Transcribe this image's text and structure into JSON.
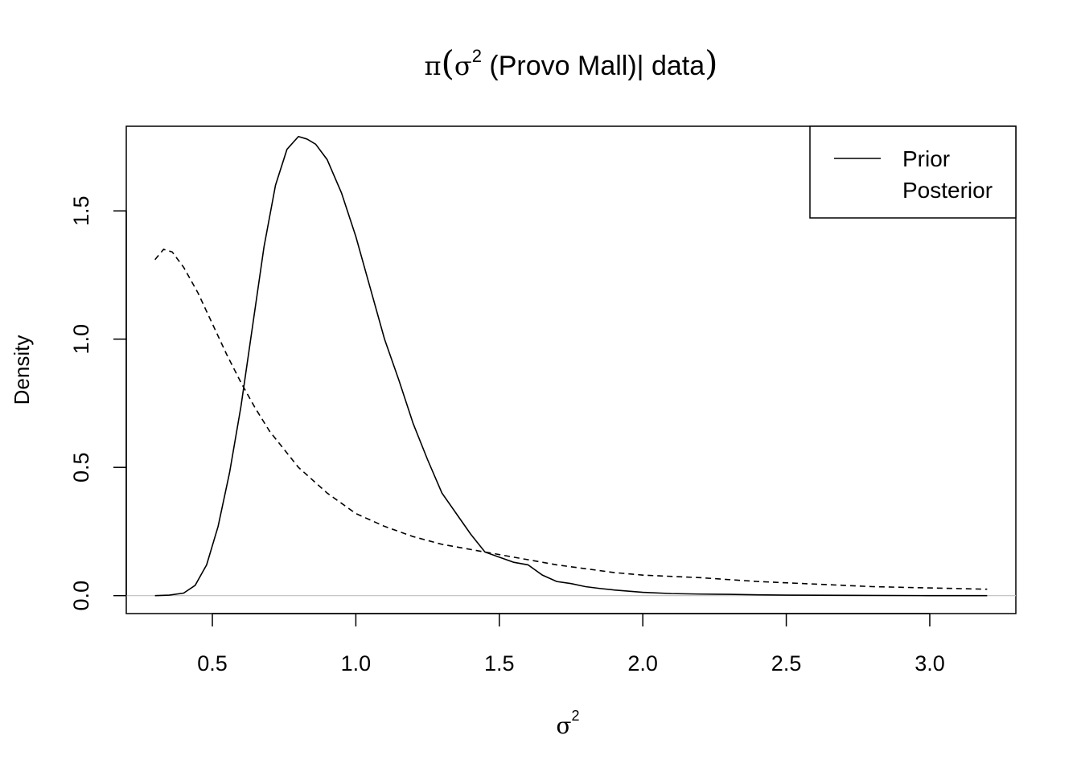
{
  "chart_data": {
    "type": "line",
    "title": {
      "pi": "π",
      "sigma": "σ",
      "sup": "2",
      "text": " (Provo Mall)| data"
    },
    "xlabel": {
      "sigma": "σ",
      "sup": "2"
    },
    "ylabel": "Density",
    "xlim": [
      0.2,
      3.3
    ],
    "ylim": [
      -0.07,
      1.83
    ],
    "x_ticks": [
      {
        "value": 0.5,
        "label": "0.5"
      },
      {
        "value": 1.0,
        "label": "1.0"
      },
      {
        "value": 1.5,
        "label": "1.5"
      },
      {
        "value": 2.0,
        "label": "2.0"
      },
      {
        "value": 2.5,
        "label": "2.5"
      },
      {
        "value": 3.0,
        "label": "3.0"
      }
    ],
    "y_ticks": [
      {
        "value": 0.0,
        "label": "0.0"
      },
      {
        "value": 0.5,
        "label": "0.5"
      },
      {
        "value": 1.0,
        "label": "1.0"
      },
      {
        "value": 1.5,
        "label": "1.5"
      }
    ],
    "baseline": 0,
    "grid": false,
    "legend": {
      "position": "top-right",
      "entries": [
        {
          "label": "Prior",
          "line_style": "solid"
        },
        {
          "label": "Posterior",
          "line_style": "none"
        }
      ]
    },
    "series": [
      {
        "style": "solid",
        "x": [
          0.3,
          0.35,
          0.4,
          0.44,
          0.48,
          0.52,
          0.56,
          0.6,
          0.64,
          0.68,
          0.72,
          0.76,
          0.8,
          0.83,
          0.86,
          0.9,
          0.95,
          1.0,
          1.05,
          1.1,
          1.15,
          1.2,
          1.25,
          1.3,
          1.35,
          1.4,
          1.45,
          1.5,
          1.55,
          1.6,
          1.65,
          1.7,
          1.75,
          1.8,
          1.85,
          1.9,
          2.0,
          2.1,
          2.2,
          2.3,
          2.4,
          2.5,
          2.7,
          3.0,
          3.2
        ],
        "y": [
          0.0,
          0.002,
          0.01,
          0.04,
          0.12,
          0.27,
          0.48,
          0.74,
          1.05,
          1.36,
          1.6,
          1.74,
          1.79,
          1.78,
          1.76,
          1.7,
          1.57,
          1.4,
          1.2,
          1.0,
          0.84,
          0.67,
          0.53,
          0.4,
          0.32,
          0.24,
          0.17,
          0.15,
          0.13,
          0.12,
          0.08,
          0.055,
          0.047,
          0.035,
          0.028,
          0.022,
          0.013,
          0.008,
          0.006,
          0.005,
          0.003,
          0.002,
          0.001,
          0.0,
          0.0
        ]
      },
      {
        "style": "dashed",
        "x": [
          0.3,
          0.33,
          0.36,
          0.4,
          0.45,
          0.5,
          0.55,
          0.6,
          0.65,
          0.7,
          0.8,
          0.9,
          1.0,
          1.1,
          1.2,
          1.3,
          1.4,
          1.5,
          1.6,
          1.7,
          1.8,
          1.9,
          2.0,
          2.2,
          2.4,
          2.6,
          2.8,
          3.0,
          3.2
        ],
        "y": [
          1.31,
          1.35,
          1.34,
          1.28,
          1.18,
          1.06,
          0.94,
          0.83,
          0.73,
          0.64,
          0.5,
          0.4,
          0.32,
          0.27,
          0.23,
          0.2,
          0.18,
          0.16,
          0.14,
          0.12,
          0.105,
          0.09,
          0.08,
          0.07,
          0.055,
          0.045,
          0.035,
          0.03,
          0.025
        ]
      }
    ]
  },
  "colors": {
    "line": "#000000",
    "baseline": "#bebebe",
    "background": "#ffffff"
  }
}
